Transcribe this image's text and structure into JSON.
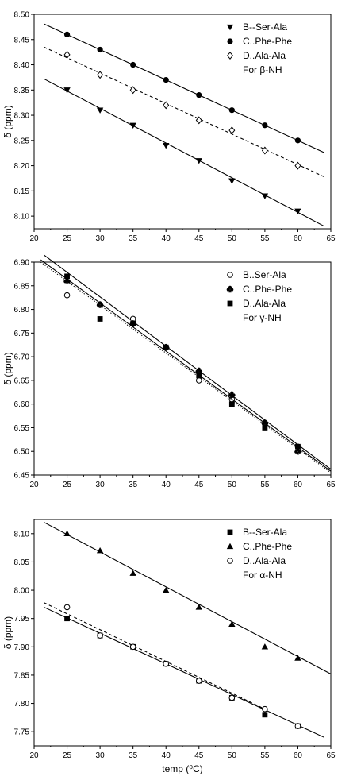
{
  "chart_data": [
    {
      "type": "scatter",
      "xlabel": "",
      "ylabel": "δ (ppm)",
      "xlim": [
        20,
        65
      ],
      "ylim": [
        8.075,
        8.5
      ],
      "xticks": [
        20,
        25,
        30,
        35,
        40,
        45,
        50,
        55,
        60,
        65
      ],
      "yticks": [
        8.1,
        8.15,
        8.2,
        8.25,
        8.3,
        8.35,
        8.4,
        8.45,
        8.5
      ],
      "ytick_decimals": 2,
      "legend_position": "top-right",
      "legend_note": "For β-NH",
      "series": [
        {
          "name": "B--Ser-Ala",
          "marker": "triangle-down",
          "line": "solid",
          "x": [
            25,
            30,
            35,
            40,
            45,
            50,
            55,
            60
          ],
          "y": [
            8.35,
            8.31,
            8.28,
            8.24,
            8.21,
            8.17,
            8.14,
            8.11
          ],
          "fit": {
            "x": [
              21.5,
              64
            ],
            "y": [
              8.372,
              8.08
            ]
          }
        },
        {
          "name": "C..Phe-Phe",
          "marker": "circle-filled",
          "line": "solid",
          "x": [
            25,
            30,
            35,
            40,
            45,
            50,
            55,
            60
          ],
          "y": [
            8.46,
            8.43,
            8.4,
            8.37,
            8.34,
            8.31,
            8.28,
            8.25
          ],
          "fit": {
            "x": [
              21.5,
              64
            ],
            "y": [
              8.481,
              8.226
            ]
          }
        },
        {
          "name": "D..Ala-Ala",
          "marker": "diamond-open",
          "line": "dashed",
          "x": [
            25,
            30,
            35,
            40,
            45,
            50,
            55,
            60
          ],
          "y": [
            8.42,
            8.38,
            8.35,
            8.32,
            8.29,
            8.27,
            8.23,
            8.2
          ],
          "fit": {
            "x": [
              21.5,
              64
            ],
            "y": [
              8.435,
              8.178
            ]
          }
        }
      ]
    },
    {
      "type": "scatter",
      "xlabel": "",
      "ylabel": "δ (ppm)",
      "xlim": [
        20,
        65
      ],
      "ylim": [
        6.45,
        6.9
      ],
      "xticks": [
        20,
        25,
        30,
        35,
        40,
        45,
        50,
        55,
        60,
        65
      ],
      "yticks": [
        6.45,
        6.5,
        6.55,
        6.6,
        6.65,
        6.7,
        6.75,
        6.8,
        6.85,
        6.9
      ],
      "ytick_decimals": 2,
      "legend_position": "top-right",
      "legend_note": "For γ-NH",
      "series": [
        {
          "name": "B..Ser-Ala",
          "marker": "circle-open",
          "line": "solid",
          "x": [
            25,
            30,
            35,
            40,
            45,
            50,
            55,
            60
          ],
          "y": [
            6.83,
            6.81,
            6.78,
            6.72,
            6.65,
            6.61,
            6.56,
            6.51
          ],
          "fit": {
            "x": [
              21.5,
              65
            ],
            "y": [
              6.915,
              6.462
            ]
          }
        },
        {
          "name": "C..Phe-Phe",
          "marker": "club",
          "line": "dotted",
          "x": [
            25,
            30,
            35,
            40,
            45,
            50,
            55,
            60
          ],
          "y": [
            6.86,
            6.81,
            6.77,
            6.72,
            6.67,
            6.62,
            6.56,
            6.5
          ],
          "fit": {
            "x": [
              21,
              65
            ],
            "y": [
              6.9,
              6.455
            ]
          }
        },
        {
          "name": "D..Ala-Ala",
          "marker": "square-filled",
          "line": "solid",
          "x": [
            25,
            30,
            35,
            40,
            45,
            50,
            55,
            60
          ],
          "y": [
            6.87,
            6.78,
            6.77,
            6.72,
            6.66,
            6.6,
            6.55,
            6.51
          ],
          "fit": {
            "x": [
              21,
              65
            ],
            "y": [
              6.905,
              6.458
            ]
          }
        }
      ]
    },
    {
      "type": "scatter",
      "xlabel": "temp (⁰C)",
      "ylabel": "δ (ppm)",
      "xlim": [
        20,
        65
      ],
      "ylim": [
        7.725,
        8.125
      ],
      "xticks": [
        20,
        25,
        30,
        35,
        40,
        45,
        50,
        55,
        60,
        65
      ],
      "yticks": [
        7.75,
        7.8,
        7.85,
        7.9,
        7.95,
        8.0,
        8.05,
        8.1
      ],
      "ytick_decimals": 2,
      "legend_position": "top-right",
      "legend_note": "For α-NH",
      "series": [
        {
          "name": "B--Ser-Ala",
          "marker": "square-filled",
          "line": "solid",
          "x": [
            25,
            30,
            35,
            40,
            45,
            50,
            55,
            60
          ],
          "y": [
            7.95,
            7.92,
            7.9,
            7.87,
            7.84,
            7.81,
            7.78,
            7.76
          ],
          "fit": {
            "x": [
              21.5,
              64
            ],
            "y": [
              7.97,
              7.74
            ]
          }
        },
        {
          "name": "C..Phe-Phe",
          "marker": "triangle-up",
          "line": "solid",
          "x": [
            25,
            30,
            35,
            40,
            45,
            50,
            55,
            60
          ],
          "y": [
            8.1,
            8.07,
            8.03,
            8.0,
            7.97,
            7.94,
            7.9,
            7.88
          ],
          "fit": {
            "x": [
              21.5,
              65
            ],
            "y": [
              8.12,
              7.852
            ]
          }
        },
        {
          "name": "D..Ala-Ala",
          "marker": "circle-open",
          "line": "dashed",
          "x": [
            25,
            30,
            35,
            40,
            45,
            50,
            55,
            60
          ],
          "y": [
            7.97,
            7.92,
            7.9,
            7.87,
            7.84,
            7.81,
            7.79,
            7.76
          ],
          "fit": {
            "x": [
              21.5,
              55
            ],
            "y": [
              7.978,
              7.79
            ]
          }
        }
      ]
    }
  ]
}
